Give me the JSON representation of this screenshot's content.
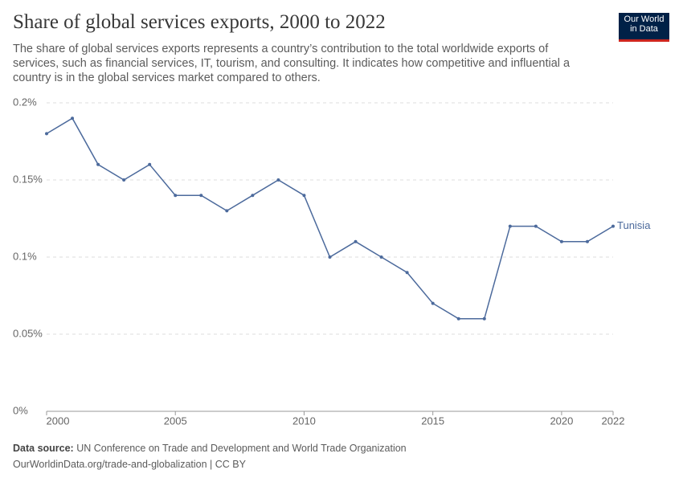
{
  "header": {
    "title": "Share of global services exports, 2000 to 2022",
    "subtitle": "The share of global services exports represents a country’s contribution to the total worldwide exports of services, such as financial services, IT, tourism, and consulting. It indicates how competitive and influential a country is in the global services market compared to others.",
    "logo": [
      "Our World",
      "in Data"
    ]
  },
  "footer": {
    "source_label": "Data source:",
    "source": "UN Conference on Trade and Development and World Trade Organization",
    "url": "OurWorldinData.org/trade-and-globalization | CC BY"
  },
  "chart_data": {
    "type": "line",
    "x": [
      2000,
      2001,
      2002,
      2003,
      2004,
      2005,
      2006,
      2007,
      2008,
      2009,
      2010,
      2011,
      2012,
      2013,
      2014,
      2015,
      2016,
      2017,
      2018,
      2019,
      2020,
      2021,
      2022
    ],
    "series": [
      {
        "name": "Tunisia",
        "color": "#4c6a9c",
        "values": [
          0.18,
          0.19,
          0.16,
          0.15,
          0.16,
          0.14,
          0.14,
          0.13,
          0.14,
          0.15,
          0.14,
          0.1,
          0.11,
          0.1,
          0.09,
          0.07,
          0.06,
          0.06,
          0.12,
          0.12,
          0.11,
          0.11,
          0.12
        ]
      }
    ],
    "xlim": [
      2000,
      2022
    ],
    "xticks": [
      2000,
      2005,
      2010,
      2015,
      2020,
      2022
    ],
    "ylim": [
      0,
      0.2
    ],
    "yticks": [
      {
        "value": 0,
        "label": "0%"
      },
      {
        "value": 0.05,
        "label": "0.05%"
      },
      {
        "value": 0.1,
        "label": "0.1%"
      },
      {
        "value": 0.15,
        "label": "0.15%"
      },
      {
        "value": 0.2,
        "label": "0.2%"
      }
    ],
    "grid": true
  }
}
